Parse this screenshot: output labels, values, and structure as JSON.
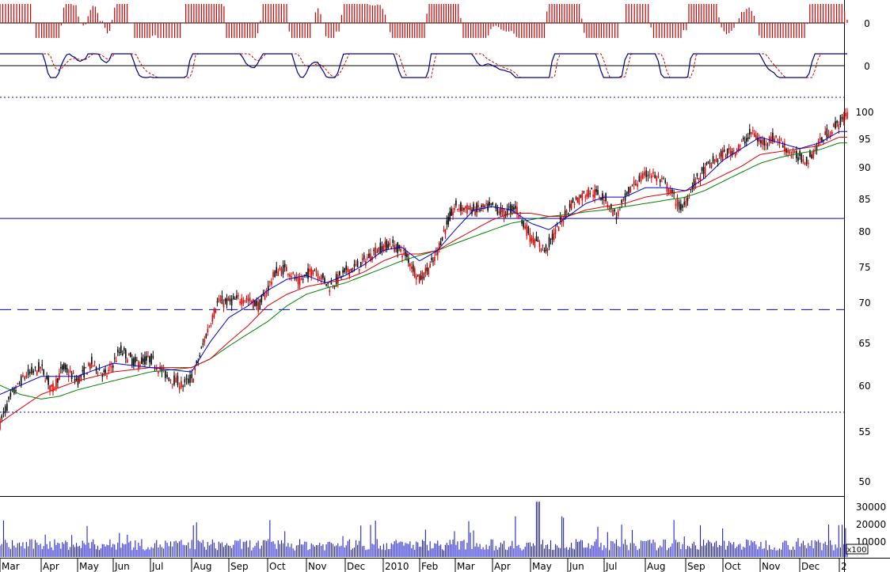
{
  "chart_data": {
    "type": "candlestick",
    "title": "",
    "colors": {
      "up_candle": "#000000",
      "down_candle": "#e00000",
      "ma_short": "#0000cc",
      "ma_mid": "#e00000",
      "ma_long": "#008000",
      "histogram": "#cc0000",
      "volume": "#2222cc",
      "line": "#000080",
      "signal": "#cc0000",
      "guide_line": "#0000cc"
    },
    "x_axis": {
      "labels": [
        "Mar",
        "Apr",
        "May",
        "Jun",
        "Jul",
        "Aug",
        "Sep",
        "Oct",
        "Nov",
        "Dec",
        "2010",
        "Feb",
        "Mar",
        "Apr",
        "May",
        "Jun",
        "Jul",
        "Aug",
        "Sep",
        "Oct",
        "Nov",
        "Dec",
        "2"
      ]
    },
    "panels": {
      "histogram": {
        "ticks": [
          "0"
        ],
        "ylim": [
          -1,
          1
        ]
      },
      "oscillator": {
        "ticks": [
          "0"
        ],
        "ylim": [
          -1,
          1
        ]
      },
      "price": {
        "ticks": [
          "100",
          "95",
          "90",
          "85",
          "80",
          "75",
          "70",
          "65",
          "60",
          "55",
          "50"
        ],
        "ylim": [
          48,
          101
        ],
        "scale": "log"
      },
      "volume": {
        "ticks": [
          "30000",
          "20000",
          "10000"
        ],
        "unit_label": "x100",
        "ylim": [
          0,
          36000
        ]
      }
    },
    "horizontal_lines": [
      {
        "panel": "price",
        "value": 80.7,
        "style": "solid"
      },
      {
        "panel": "price",
        "value": 68,
        "style": "dashed"
      },
      {
        "panel": "price",
        "value": 101.3,
        "style": "dotted"
      },
      {
        "panel": "price",
        "value": 56.1,
        "style": "dotted"
      }
    ],
    "price_path": [
      [
        0,
        55
      ],
      [
        0.3,
        58
      ],
      [
        0.6,
        60
      ],
      [
        1,
        61
      ],
      [
        1.3,
        58.5
      ],
      [
        1.6,
        61
      ],
      [
        2,
        59.5
      ],
      [
        2.4,
        61.5
      ],
      [
        2.8,
        60
      ],
      [
        3.2,
        63
      ],
      [
        3.6,
        61.5
      ],
      [
        4,
        62
      ],
      [
        4.4,
        60
      ],
      [
        4.8,
        59
      ],
      [
        5.05,
        60
      ],
      [
        5.4,
        65
      ],
      [
        5.7,
        69
      ],
      [
        6,
        69
      ],
      [
        6.4,
        69.5
      ],
      [
        6.8,
        68.5
      ],
      [
        7.2,
        73
      ],
      [
        7.5,
        73.5
      ],
      [
        7.8,
        71.5
      ],
      [
        8.2,
        73.5
      ],
      [
        8.6,
        71
      ],
      [
        9,
        73
      ],
      [
        9.4,
        74
      ],
      [
        9.8,
        76
      ],
      [
        10.2,
        77
      ],
      [
        10.6,
        75.5
      ],
      [
        11,
        72
      ],
      [
        11.4,
        74.5
      ],
      [
        11.7,
        79
      ],
      [
        12,
        82.5
      ],
      [
        12.5,
        82
      ],
      [
        13,
        82.5
      ],
      [
        13.3,
        81.5
      ],
      [
        13.6,
        82.5
      ],
      [
        14,
        78
      ],
      [
        14.4,
        76
      ],
      [
        14.8,
        80
      ],
      [
        15.1,
        83
      ],
      [
        15.6,
        85
      ],
      [
        16,
        84
      ],
      [
        16.3,
        81
      ],
      [
        16.7,
        86
      ],
      [
        17.1,
        88
      ],
      [
        17.5,
        86
      ],
      [
        17.9,
        82
      ],
      [
        18.2,
        86
      ],
      [
        18.6,
        89
      ],
      [
        19,
        91
      ],
      [
        19.4,
        92
      ],
      [
        19.8,
        95
      ],
      [
        20,
        93
      ],
      [
        20.4,
        94
      ],
      [
        20.8,
        91
      ],
      [
        21.2,
        90
      ],
      [
        21.6,
        94
      ],
      [
        22.2,
        98
      ]
    ],
    "ma_short_path": [
      [
        0,
        58
      ],
      [
        1,
        60
      ],
      [
        2,
        60
      ],
      [
        3,
        61.5
      ],
      [
        4,
        61
      ],
      [
        5,
        60.5
      ],
      [
        5.5,
        64
      ],
      [
        6,
        67
      ],
      [
        6.5,
        68.5
      ],
      [
        7,
        70.5
      ],
      [
        7.5,
        72
      ],
      [
        8,
        72.5
      ],
      [
        8.5,
        71.5
      ],
      [
        9,
        72.5
      ],
      [
        9.5,
        74
      ],
      [
        10,
        76
      ],
      [
        10.5,
        76.5
      ],
      [
        11,
        74.5
      ],
      [
        11.5,
        76
      ],
      [
        12,
        79
      ],
      [
        12.5,
        82
      ],
      [
        13,
        82.5
      ],
      [
        13.5,
        82
      ],
      [
        14,
        80
      ],
      [
        14.5,
        79
      ],
      [
        15,
        81
      ],
      [
        15.5,
        83
      ],
      [
        16,
        84
      ],
      [
        16.5,
        84
      ],
      [
        17,
        85.5
      ],
      [
        17.5,
        85.5
      ],
      [
        18,
        85
      ],
      [
        18.5,
        87
      ],
      [
        19,
        90
      ],
      [
        19.5,
        92
      ],
      [
        20,
        94
      ],
      [
        20.5,
        93
      ],
      [
        21,
        92
      ],
      [
        21.5,
        93
      ],
      [
        22,
        95
      ]
    ],
    "ma_mid_path": [
      [
        0,
        55
      ],
      [
        1,
        58
      ],
      [
        2,
        59.5
      ],
      [
        3,
        60.5
      ],
      [
        4,
        61
      ],
      [
        5,
        61
      ],
      [
        5.5,
        62
      ],
      [
        6,
        64
      ],
      [
        6.5,
        66
      ],
      [
        7,
        68.5
      ],
      [
        7.5,
        70
      ],
      [
        8,
        71
      ],
      [
        8.5,
        71.5
      ],
      [
        9,
        72
      ],
      [
        9.5,
        73
      ],
      [
        10,
        74.5
      ],
      [
        10.5,
        75.5
      ],
      [
        11,
        75.5
      ],
      [
        11.5,
        76
      ],
      [
        12,
        77.5
      ],
      [
        12.5,
        79
      ],
      [
        13,
        80.5
      ],
      [
        13.5,
        81.5
      ],
      [
        14,
        81.5
      ],
      [
        14.5,
        81
      ],
      [
        15,
        81
      ],
      [
        15.5,
        82
      ],
      [
        16,
        82.5
      ],
      [
        16.5,
        83
      ],
      [
        17,
        84
      ],
      [
        17.5,
        84.5
      ],
      [
        18,
        85
      ],
      [
        18.5,
        86
      ],
      [
        19,
        87.5
      ],
      [
        19.5,
        89
      ],
      [
        20,
        91
      ],
      [
        20.5,
        91.5
      ],
      [
        21,
        92
      ],
      [
        21.5,
        92.5
      ],
      [
        22,
        94
      ]
    ],
    "ma_long_path": [
      [
        0,
        59
      ],
      [
        0.5,
        58
      ],
      [
        1,
        57.5
      ],
      [
        1.5,
        57.8
      ],
      [
        2,
        58.5
      ],
      [
        3,
        59.5
      ],
      [
        4,
        60.5
      ],
      [
        5,
        61
      ],
      [
        5.5,
        62
      ],
      [
        6,
        63.5
      ],
      [
        6.5,
        65
      ],
      [
        7,
        66.5
      ],
      [
        7.5,
        68.5
      ],
      [
        8,
        70
      ],
      [
        8.5,
        70.8
      ],
      [
        9,
        71.5
      ],
      [
        9.5,
        72.5
      ],
      [
        10,
        73.5
      ],
      [
        10.5,
        74.5
      ],
      [
        11,
        75.3
      ],
      [
        11.5,
        76
      ],
      [
        12,
        77
      ],
      [
        12.5,
        78
      ],
      [
        13,
        79
      ],
      [
        13.5,
        80
      ],
      [
        14,
        80.5
      ],
      [
        14.5,
        81
      ],
      [
        15,
        81.3
      ],
      [
        15.5,
        81.7
      ],
      [
        16,
        82
      ],
      [
        16.5,
        82.5
      ],
      [
        17,
        83
      ],
      [
        17.5,
        83.5
      ],
      [
        18,
        84
      ],
      [
        18.5,
        85
      ],
      [
        19,
        86.5
      ],
      [
        19.5,
        88
      ],
      [
        20,
        89.5
      ],
      [
        20.5,
        90.5
      ],
      [
        21,
        91.2
      ],
      [
        21.5,
        91.8
      ],
      [
        22,
        93
      ]
    ]
  }
}
